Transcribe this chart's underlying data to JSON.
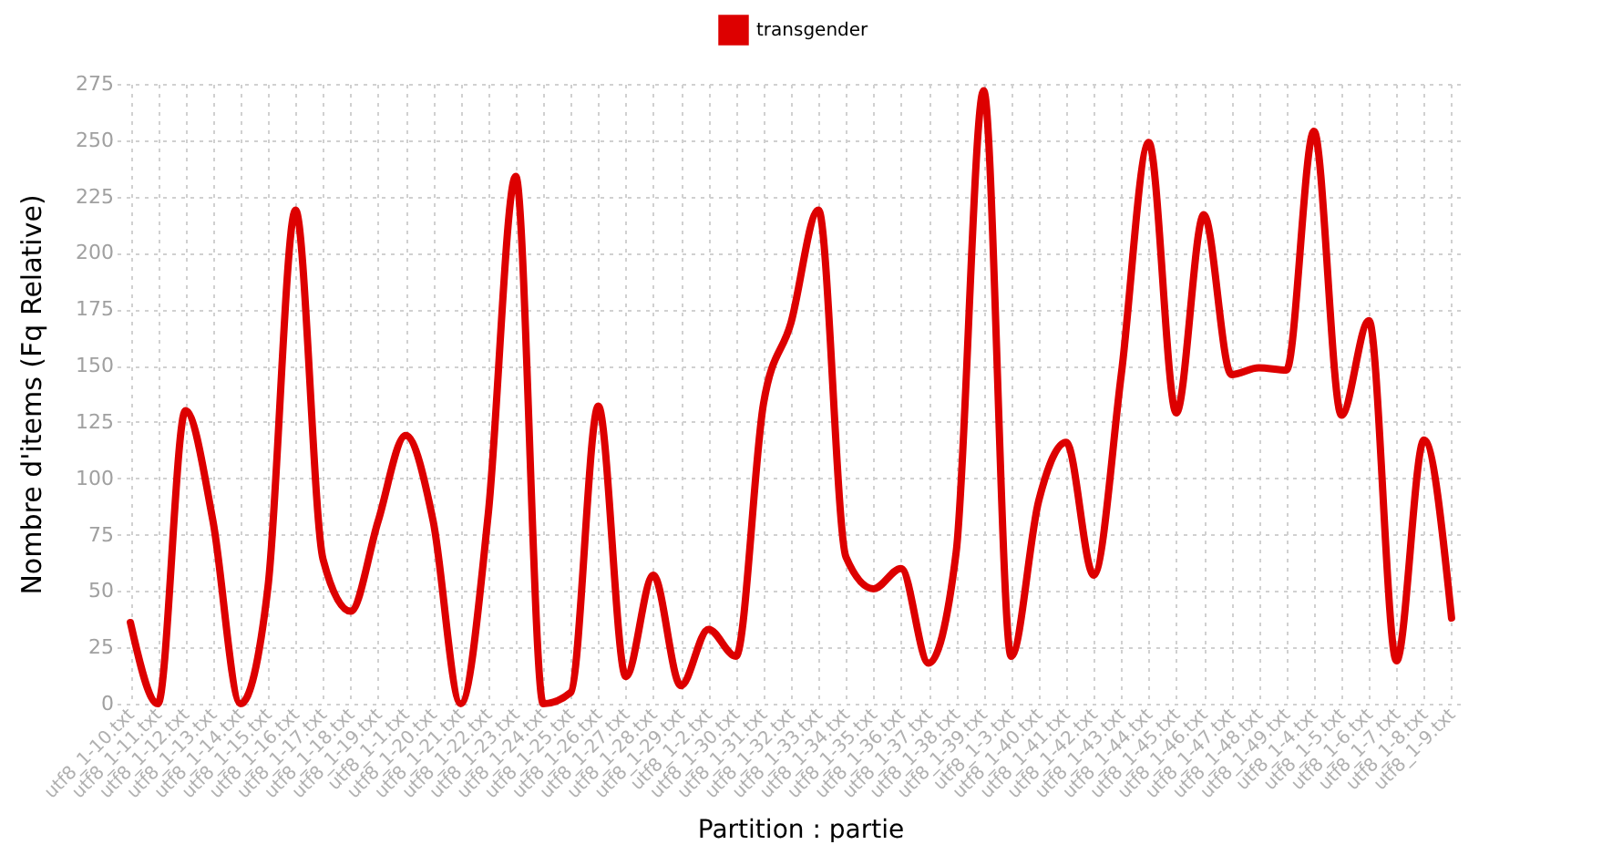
{
  "chart_data": {
    "type": "line",
    "xlabel": "Partition : partie",
    "ylabel": "Nombre d'items (Fq Relative)",
    "categories": [
      "utf8_1-10.txt",
      "utf8_1-11.txt",
      "utf8_1-12.txt",
      "utf8_1-13.txt",
      "utf8_1-14.txt",
      "utf8_1-15.txt",
      "utf8_1-16.txt",
      "utf8_1-17.txt",
      "utf8_1-18.txt",
      "utf8_1-19.txt",
      "utf8_1-1.txt",
      "utf8_1-20.txt",
      "utf8_1-21.txt",
      "utf8_1-22.txt",
      "utf8_1-23.txt",
      "utf8_1-24.txt",
      "utf8_1-25.txt",
      "utf8_1-26.txt",
      "utf8_1-27.txt",
      "utf8_1-28.txt",
      "utf8_1-29.txt",
      "utf8_1-2.txt",
      "utf8_1-30.txt",
      "utf8_1-31.txt",
      "utf8_1-32.txt",
      "utf8_1-33.txt",
      "utf8_1-34.txt",
      "utf8_1-35.txt",
      "utf8_1-36.txt",
      "utf8_1-37.txt",
      "utf8_1-38.txt",
      "utf8_1-39.txt",
      "utf8_1-3.txt",
      "utf8_1-40.txt",
      "utf8_1-41.txt",
      "utf8_1-42.txt",
      "utf8_1-43.txt",
      "utf8_1-44.txt",
      "utf8_1-45.txt",
      "utf8_1-46.txt",
      "utf8_1-47.txt",
      "utf8_1-48.txt",
      "utf8_1-49.txt",
      "utf8_1-4.txt",
      "utf8_1-5.txt",
      "utf8_1-6.txt",
      "utf8_1-7.txt",
      "utf8_1-8.txt",
      "utf8_1-9.txt"
    ],
    "series": [
      {
        "name": "transgender",
        "color": "#dd0000",
        "values": [
          36,
          0,
          130,
          81,
          0,
          52,
          219,
          64,
          41,
          81,
          119,
          81,
          0,
          84,
          234,
          0,
          5,
          132,
          12,
          57,
          8,
          33,
          21,
          133,
          169,
          219,
          65,
          51,
          60,
          18,
          67,
          272,
          21,
          90,
          116,
          57,
          146,
          249,
          129,
          217,
          146,
          149,
          148,
          254,
          128,
          170,
          19,
          117,
          38
        ]
      }
    ],
    "ylim": [
      0,
      275
    ],
    "yticks": [
      0,
      25,
      50,
      75,
      100,
      125,
      150,
      175,
      200,
      225,
      250,
      275
    ],
    "grid": true,
    "legend": "top",
    "marker": "none",
    "line_style": "solid"
  }
}
